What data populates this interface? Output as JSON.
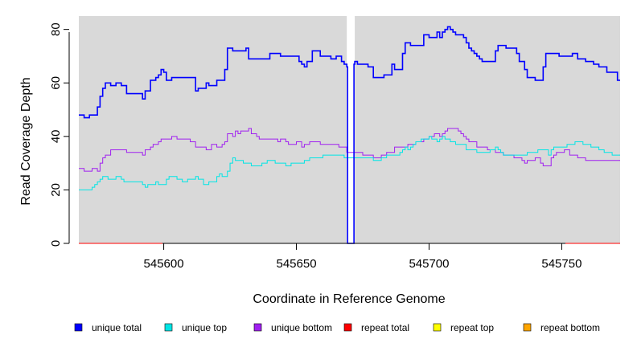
{
  "chart_data": {
    "type": "line",
    "step": true,
    "xlabel": "Coordinate in Reference Genome",
    "ylabel": "Read Coverage Depth",
    "xlim": [
      545568,
      545772
    ],
    "ylim": [
      0,
      85
    ],
    "xticks": [
      545600,
      545650,
      545700,
      545750
    ],
    "yticks": [
      0,
      20,
      40,
      60,
      80
    ],
    "background": "#d9d9d9",
    "grid": false,
    "legend_position": "bottom",
    "gap": [
      545669,
      545672
    ],
    "series": [
      {
        "name": "unique total",
        "color": "#0000ff",
        "x": [
          545568,
          545570,
          545572,
          545575,
          545576,
          545577,
          545578,
          545580,
          545582,
          545584,
          545586,
          545592,
          545593,
          545595,
          545597,
          545598,
          545599,
          545600,
          545601,
          545603,
          545606,
          545612,
          545613,
          545616,
          545617,
          545620,
          545623,
          545624,
          545626,
          545631,
          545632,
          545640,
          545644,
          545651,
          545652,
          545653,
          545654,
          545656,
          545659,
          545663,
          545665,
          545667,
          545668,
          545669,
          545669.3,
          545671.7,
          545672,
          545673,
          545677,
          545679,
          545683,
          545686,
          545687,
          545690,
          545691,
          545693,
          545698,
          545700,
          545703,
          545704,
          545705,
          545706,
          545707,
          545708,
          545709,
          545710,
          545713,
          545714,
          545715,
          545716,
          545717,
          545718,
          545719,
          545720,
          545725,
          545726,
          545729,
          545733,
          545734,
          545736,
          545737,
          545740,
          545743,
          545744,
          545749,
          545754,
          545756,
          545759,
          545762,
          545764,
          545767,
          545771,
          545772
        ],
        "y": [
          48,
          47,
          48,
          51,
          55,
          58,
          60,
          59,
          60,
          59,
          56,
          54,
          57,
          61,
          62,
          63,
          65,
          64,
          61,
          62,
          62,
          57,
          58,
          60,
          59,
          61,
          65,
          73,
          72,
          73,
          69,
          71,
          70,
          68,
          67,
          66,
          68,
          72,
          70,
          69,
          70,
          68,
          67,
          66,
          0,
          67,
          68,
          67,
          66,
          62,
          63,
          67,
          65,
          71,
          75,
          74,
          78,
          77,
          79,
          77,
          79,
          80,
          81,
          80,
          79,
          78,
          77,
          75,
          73,
          72,
          71,
          70,
          69,
          68,
          72,
          74,
          73,
          71,
          68,
          65,
          62,
          61,
          66,
          71,
          70,
          71,
          69,
          68,
          67,
          66,
          64,
          61,
          61
        ]
      },
      {
        "name": "unique top",
        "color": "#00e5e5",
        "x": [
          545568,
          545573,
          545574,
          545575,
          545576,
          545577,
          545579,
          545582,
          545584,
          545585,
          545592,
          545593,
          545594,
          545597,
          545598,
          545601,
          545602,
          545605,
          545607,
          545609,
          545612,
          545613,
          545615,
          545617,
          545620,
          545621,
          545622,
          545624,
          545625,
          545626,
          545627,
          545630,
          545633,
          545637,
          545639,
          545642,
          545646,
          545648,
          545653,
          545655,
          545660,
          545668,
          545679,
          545682,
          545684,
          545689,
          545690,
          545691,
          545692,
          545693,
          545694,
          545695,
          545697,
          545700,
          545701,
          545703,
          545704,
          545705,
          545706,
          545708,
          545710,
          545714,
          545718,
          545723,
          545725,
          545726,
          545727,
          545728,
          545737,
          545741,
          545745,
          545746,
          545747,
          545752,
          545755,
          545758,
          545761,
          545764,
          545766,
          545769,
          545772
        ],
        "y": [
          20,
          21,
          22,
          23,
          24,
          25,
          24,
          25,
          24,
          23,
          22,
          21,
          22,
          23,
          22,
          24,
          25,
          24,
          23,
          24,
          25,
          24,
          22,
          23,
          25,
          26,
          25,
          27,
          30,
          32,
          31,
          30,
          29,
          30,
          31,
          30,
          29,
          30,
          31,
          32,
          33,
          32,
          31,
          32,
          33,
          34,
          35,
          36,
          35,
          36,
          37,
          38,
          39,
          40,
          39,
          38,
          39,
          40,
          39,
          38,
          37,
          35,
          34,
          35,
          36,
          35,
          34,
          33,
          34,
          35,
          33,
          35,
          36,
          37,
          38,
          37,
          36,
          35,
          34,
          33,
          33
        ]
      },
      {
        "name": "unique bottom",
        "color": "#a020f0",
        "x": [
          545568,
          545570,
          545573,
          545575,
          545576,
          545577,
          545578,
          545580,
          545586,
          545592,
          545593,
          545595,
          545596,
          545598,
          545599,
          545603,
          545605,
          545610,
          545612,
          545616,
          545618,
          545620,
          545622,
          545623,
          545624,
          545626,
          545627,
          545628,
          545629,
          545632,
          545633,
          545635,
          545636,
          545643,
          545644,
          545646,
          545647,
          545650,
          545652,
          545653,
          545655,
          545659,
          545666,
          545669,
          545675,
          545679,
          545682,
          545684,
          545687,
          545692,
          545695,
          545698,
          545700,
          545702,
          545704,
          545705,
          545706,
          545707,
          545711,
          545712,
          545713,
          545714,
          545715,
          545718,
          545722,
          545725,
          545728,
          545732,
          545735,
          545736,
          545737,
          545740,
          545742,
          545743,
          545746,
          545747,
          545748,
          545751,
          545753,
          545756,
          545759,
          545766,
          545770,
          545772
        ],
        "y": [
          28,
          27,
          28,
          27,
          30,
          32,
          33,
          35,
          34,
          33,
          35,
          36,
          37,
          38,
          39,
          40,
          39,
          38,
          36,
          35,
          37,
          36,
          37,
          38,
          41,
          40,
          42,
          41,
          42,
          43,
          41,
          40,
          39,
          38,
          39,
          38,
          37,
          38,
          36,
          37,
          38,
          37,
          36,
          34,
          33,
          32,
          33,
          34,
          36,
          37,
          38,
          39,
          40,
          41,
          40,
          41,
          42,
          43,
          42,
          41,
          40,
          39,
          38,
          36,
          35,
          34,
          33,
          32,
          31,
          30,
          31,
          32,
          30,
          29,
          32,
          33,
          34,
          35,
          33,
          32,
          31,
          31,
          31,
          31
        ]
      },
      {
        "name": "repeat total",
        "color": "#ff0000",
        "x": [
          545568,
          545772
        ],
        "y": [
          0,
          0
        ]
      },
      {
        "name": "repeat top",
        "color": "#ffff00",
        "x": [
          545568,
          545772
        ],
        "y": [
          0,
          0
        ]
      },
      {
        "name": "repeat bottom",
        "color": "#ffa500",
        "x": [
          545568,
          545772
        ],
        "y": [
          0,
          0
        ]
      }
    ]
  }
}
